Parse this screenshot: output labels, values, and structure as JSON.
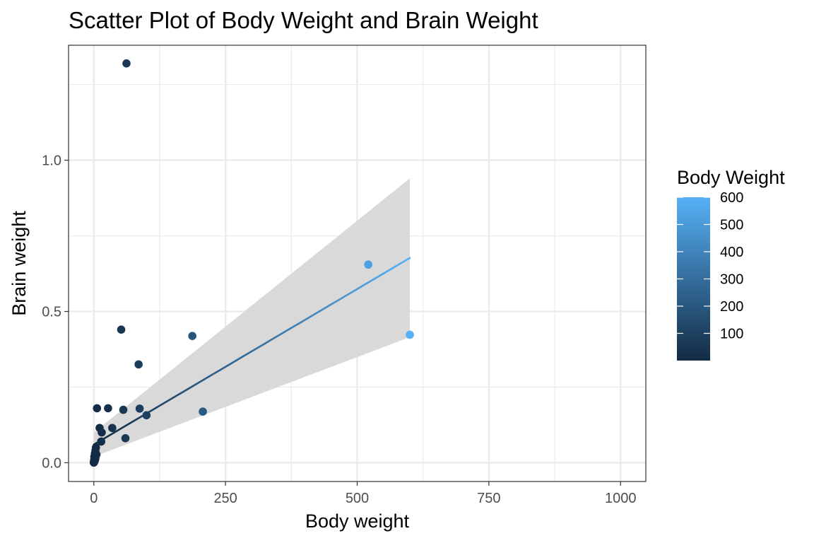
{
  "chart_data": {
    "type": "scatter",
    "title": "Scatter Plot of Body Weight and Brain Weight",
    "xlabel": "Body weight",
    "ylabel": "Brain weight",
    "xlim": [
      -48,
      1048
    ],
    "ylim": [
      -0.062,
      1.38
    ],
    "x_ticks": [
      0,
      250,
      500,
      750,
      1000
    ],
    "x_tick_labels": [
      "0",
      "250",
      "500",
      "750",
      "1000"
    ],
    "y_ticks": [
      0.0,
      0.5,
      1.0
    ],
    "y_tick_labels": [
      "0.0",
      "0.5",
      "1.0"
    ],
    "grid": true,
    "legend": {
      "title": "Body Weight",
      "placement": "right",
      "type": "colorbar",
      "ticks": [
        100,
        200,
        300,
        400,
        500,
        600
      ],
      "tick_labels": [
        "100",
        "200",
        "300",
        "400",
        "500",
        "600"
      ],
      "range": [
        0,
        600
      ],
      "color_low": "#132B43",
      "color_high": "#56B1F7"
    },
    "points": [
      {
        "x": 62,
        "y": 1.32
      },
      {
        "x": 521,
        "y": 0.655
      },
      {
        "x": 600,
        "y": 0.423
      },
      {
        "x": 52,
        "y": 0.44
      },
      {
        "x": 187,
        "y": 0.419
      },
      {
        "x": 85,
        "y": 0.325
      },
      {
        "x": 207,
        "y": 0.169
      },
      {
        "x": 6,
        "y": 0.18
      },
      {
        "x": 27,
        "y": 0.18
      },
      {
        "x": 56,
        "y": 0.175
      },
      {
        "x": 87,
        "y": 0.179
      },
      {
        "x": 100,
        "y": 0.157
      },
      {
        "x": 11,
        "y": 0.115
      },
      {
        "x": 35,
        "y": 0.115
      },
      {
        "x": 15,
        "y": 0.1
      },
      {
        "x": 14,
        "y": 0.07
      },
      {
        "x": 60,
        "y": 0.081
      },
      {
        "x": 4,
        "y": 0.05
      },
      {
        "x": 3,
        "y": 0.04
      },
      {
        "x": 5,
        "y": 0.027
      },
      {
        "x": 2,
        "y": 0.03
      },
      {
        "x": 1,
        "y": 0.02
      },
      {
        "x": 3,
        "y": 0.015
      },
      {
        "x": 1,
        "y": 0.012
      },
      {
        "x": 2,
        "y": 0.008
      },
      {
        "x": 0.5,
        "y": 0.006
      },
      {
        "x": 1,
        "y": 0.004
      },
      {
        "x": 0.3,
        "y": 0.003
      },
      {
        "x": 0.2,
        "y": 0.002
      },
      {
        "x": 0.1,
        "y": 0.001
      },
      {
        "x": 0.05,
        "y": 0.0005
      },
      {
        "x": 0.8,
        "y": 0.009
      },
      {
        "x": 1.5,
        "y": 0.01
      },
      {
        "x": 0.4,
        "y": 0.0025
      },
      {
        "x": 2.5,
        "y": 0.011
      }
    ],
    "trend_line": {
      "x": [
        0,
        600
      ],
      "y": [
        0.06,
        0.677
      ]
    },
    "confidence_band": {
      "x": [
        0,
        600
      ],
      "lower": [
        0.02,
        0.415
      ],
      "upper": [
        0.1,
        0.94
      ]
    },
    "band_color": "#d9d9d9"
  }
}
